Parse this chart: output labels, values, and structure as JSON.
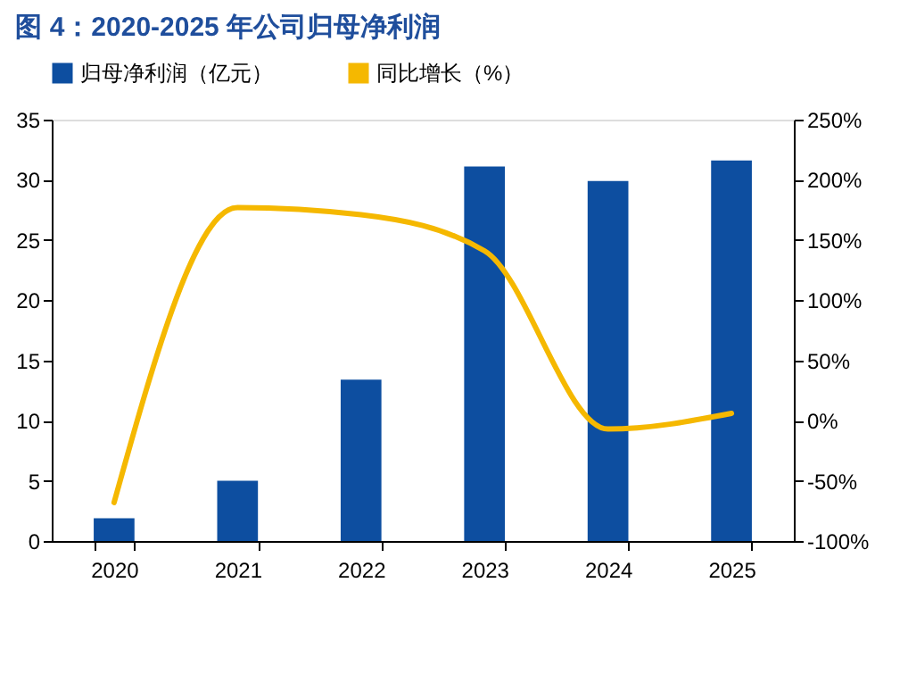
{
  "chart_data": {
    "type": "bar",
    "title": "图 4：2020-2025 年公司归母净利润",
    "categories": [
      "2020",
      "2021",
      "2022",
      "2023",
      "2024",
      "2025"
    ],
    "series": [
      {
        "name": "归母净利润（亿元）",
        "color": "#0d4ea0",
        "values": [
          1.9,
          5.0,
          13.4,
          31.1,
          29.9,
          31.6
        ]
      },
      {
        "name": "同比增长（%）",
        "color": "#f5b800",
        "type": "line",
        "axis": "y2",
        "values": [
          -68,
          177,
          171,
          141,
          -7,
          6
        ]
      }
    ],
    "ylim": [
      0,
      35
    ],
    "yticks": [
      0,
      5,
      10,
      15,
      20,
      25,
      30,
      35
    ],
    "y2lim": [
      -100,
      250
    ],
    "y2ticks": [
      {
        "value": -100,
        "label": "-100%"
      },
      {
        "value": -50,
        "label": "-50%"
      },
      {
        "value": 0,
        "label": "0%"
      },
      {
        "value": 50,
        "label": "50%"
      },
      {
        "value": 100,
        "label": "100%"
      },
      {
        "value": 150,
        "label": "150%"
      },
      {
        "value": 200,
        "label": "200%"
      },
      {
        "value": 250,
        "label": "250%"
      }
    ],
    "grid": false,
    "legend": "top"
  }
}
